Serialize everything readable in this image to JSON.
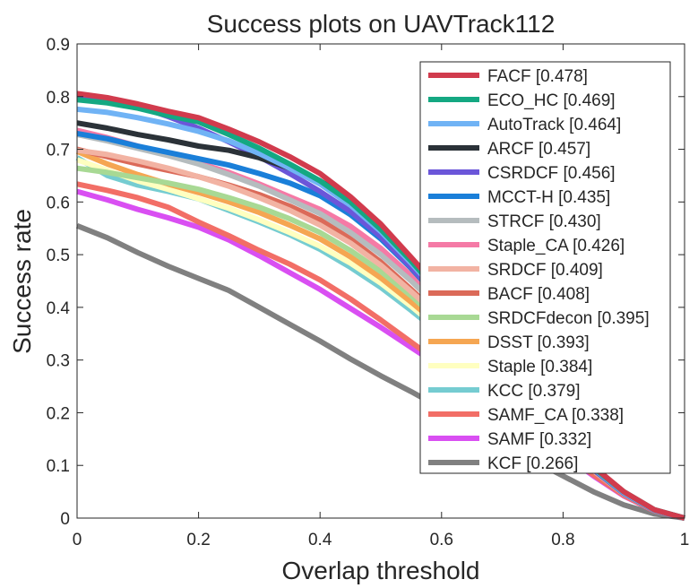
{
  "chart_data": {
    "type": "line",
    "title": "Success plots on UAVTrack112",
    "xlabel": "Overlap threshold",
    "ylabel": "Success rate",
    "xlim": [
      0,
      1
    ],
    "ylim": [
      0,
      0.9
    ],
    "xticks": [
      0,
      0.2,
      0.4,
      0.6,
      0.8,
      1
    ],
    "xtick_labels": [
      "0",
      "0.2",
      "0.4",
      "0.6",
      "0.8",
      "1"
    ],
    "yticks": [
      0,
      0.1,
      0.2,
      0.3,
      0.4,
      0.5,
      0.6,
      0.7,
      0.8,
      0.9
    ],
    "ytick_labels": [
      "0",
      "0.1",
      "0.2",
      "0.3",
      "0.4",
      "0.5",
      "0.6",
      "0.7",
      "0.8",
      "0.9"
    ],
    "grid": false,
    "legend_position": "top-right",
    "x": [
      0,
      0.05,
      0.1,
      0.15,
      0.2,
      0.25,
      0.3,
      0.35,
      0.4,
      0.45,
      0.5,
      0.55,
      0.6,
      0.65,
      0.7,
      0.75,
      0.8,
      0.85,
      0.9,
      0.95,
      1.0
    ],
    "series": [
      {
        "name": "FACF [0.478]",
        "color": "#d13b4d",
        "values": [
          0.806,
          0.798,
          0.786,
          0.772,
          0.76,
          0.738,
          0.714,
          0.686,
          0.654,
          0.61,
          0.558,
          0.495,
          0.43,
          0.362,
          0.292,
          0.222,
          0.156,
          0.098,
          0.05,
          0.016,
          0.0
        ]
      },
      {
        "name": "ECO_HC [0.469]",
        "color": "#14a882",
        "values": [
          0.794,
          0.788,
          0.778,
          0.764,
          0.752,
          0.728,
          0.702,
          0.672,
          0.64,
          0.6,
          0.548,
          0.488,
          0.423,
          0.356,
          0.288,
          0.22,
          0.154,
          0.096,
          0.05,
          0.016,
          0.0
        ]
      },
      {
        "name": "AutoTrack [0.464]",
        "color": "#70b3f5",
        "values": [
          0.776,
          0.77,
          0.76,
          0.748,
          0.734,
          0.716,
          0.692,
          0.664,
          0.634,
          0.594,
          0.544,
          0.484,
          0.42,
          0.353,
          0.286,
          0.218,
          0.152,
          0.094,
          0.048,
          0.015,
          0.0
        ]
      },
      {
        "name": "ARCF [0.457]",
        "color": "#2b3238",
        "values": [
          0.75,
          0.74,
          0.728,
          0.718,
          0.706,
          0.698,
          0.684,
          0.664,
          0.64,
          0.604,
          0.554,
          0.494,
          0.428,
          0.358,
          0.288,
          0.218,
          0.152,
          0.094,
          0.048,
          0.015,
          0.0
        ]
      },
      {
        "name": "CSRDCF [0.456]",
        "color": "#6b56d9",
        "values": [
          0.804,
          0.796,
          0.782,
          0.762,
          0.74,
          0.714,
          0.686,
          0.654,
          0.62,
          0.582,
          0.534,
          0.476,
          0.414,
          0.348,
          0.282,
          0.216,
          0.15,
          0.092,
          0.047,
          0.015,
          0.0
        ]
      },
      {
        "name": "MCCT-H [0.435]",
        "color": "#1a7fd9",
        "values": [
          0.73,
          0.72,
          0.706,
          0.694,
          0.682,
          0.67,
          0.654,
          0.636,
          0.612,
          0.576,
          0.53,
          0.474,
          0.412,
          0.346,
          0.28,
          0.214,
          0.15,
          0.092,
          0.047,
          0.015,
          0.0
        ]
      },
      {
        "name": "STRCF [0.430]",
        "color": "#b5bcbe",
        "values": [
          0.728,
          0.716,
          0.702,
          0.688,
          0.672,
          0.652,
          0.63,
          0.604,
          0.578,
          0.542,
          0.5,
          0.45,
          0.394,
          0.334,
          0.272,
          0.21,
          0.148,
          0.092,
          0.047,
          0.015,
          0.0
        ]
      },
      {
        "name": "Staple_CA [0.426]",
        "color": "#f57aa6",
        "values": [
          0.736,
          0.722,
          0.706,
          0.69,
          0.674,
          0.656,
          0.634,
          0.61,
          0.586,
          0.554,
          0.512,
          0.46,
          0.402,
          0.34,
          0.276,
          0.212,
          0.15,
          0.092,
          0.047,
          0.015,
          0.0
        ]
      },
      {
        "name": "SRDCF [0.409]",
        "color": "#f2b3a3",
        "values": [
          0.698,
          0.69,
          0.678,
          0.664,
          0.648,
          0.63,
          0.608,
          0.584,
          0.556,
          0.522,
          0.48,
          0.43,
          0.378,
          0.322,
          0.264,
          0.206,
          0.146,
          0.09,
          0.046,
          0.015,
          0.0
        ]
      },
      {
        "name": "BACF [0.408]",
        "color": "#db6a59",
        "values": [
          0.7,
          0.686,
          0.672,
          0.66,
          0.648,
          0.632,
          0.614,
          0.592,
          0.566,
          0.53,
          0.486,
          0.434,
          0.38,
          0.322,
          0.262,
          0.202,
          0.144,
          0.09,
          0.046,
          0.015,
          0.0
        ]
      },
      {
        "name": "SRDCFdecon [0.395]",
        "color": "#a8d994",
        "values": [
          0.664,
          0.656,
          0.646,
          0.636,
          0.624,
          0.608,
          0.59,
          0.568,
          0.542,
          0.508,
          0.468,
          0.422,
          0.37,
          0.316,
          0.26,
          0.202,
          0.144,
          0.09,
          0.046,
          0.015,
          0.0
        ]
      },
      {
        "name": "DSST [0.393]",
        "color": "#f5a652",
        "values": [
          0.696,
          0.672,
          0.652,
          0.634,
          0.618,
          0.6,
          0.58,
          0.556,
          0.53,
          0.496,
          0.456,
          0.41,
          0.362,
          0.31,
          0.256,
          0.2,
          0.144,
          0.09,
          0.046,
          0.015,
          0.0
        ]
      },
      {
        "name": "Staple [0.384]",
        "color": "#ffffc0",
        "values": [
          0.68,
          0.66,
          0.64,
          0.624,
          0.606,
          0.588,
          0.566,
          0.542,
          0.516,
          0.484,
          0.446,
          0.402,
          0.354,
          0.304,
          0.252,
          0.198,
          0.142,
          0.09,
          0.046,
          0.015,
          0.0
        ]
      },
      {
        "name": "KCC [0.379]",
        "color": "#75ccd1",
        "values": [
          0.684,
          0.65,
          0.632,
          0.62,
          0.606,
          0.584,
          0.562,
          0.538,
          0.51,
          0.476,
          0.438,
          0.394,
          0.348,
          0.3,
          0.25,
          0.198,
          0.144,
          0.092,
          0.048,
          0.016,
          0.0
        ]
      },
      {
        "name": "SAMF_CA [0.338]",
        "color": "#f26e66",
        "values": [
          0.634,
          0.622,
          0.608,
          0.59,
          0.562,
          0.536,
          0.508,
          0.482,
          0.452,
          0.416,
          0.376,
          0.334,
          0.292,
          0.25,
          0.208,
          0.166,
          0.124,
          0.082,
          0.043,
          0.014,
          0.0
        ]
      },
      {
        "name": "SAMF [0.332]",
        "color": "#d94ff2",
        "values": [
          0.62,
          0.604,
          0.586,
          0.57,
          0.552,
          0.528,
          0.498,
          0.466,
          0.434,
          0.398,
          0.362,
          0.324,
          0.286,
          0.246,
          0.206,
          0.164,
          0.122,
          0.08,
          0.042,
          0.014,
          0.0
        ]
      },
      {
        "name": "KCF [0.266]",
        "color": "#808080",
        "values": [
          0.555,
          0.532,
          0.504,
          0.478,
          0.455,
          0.432,
          0.4,
          0.368,
          0.336,
          0.302,
          0.27,
          0.24,
          0.208,
          0.176,
          0.144,
          0.11,
          0.08,
          0.05,
          0.025,
          0.008,
          0.0
        ]
      }
    ]
  }
}
